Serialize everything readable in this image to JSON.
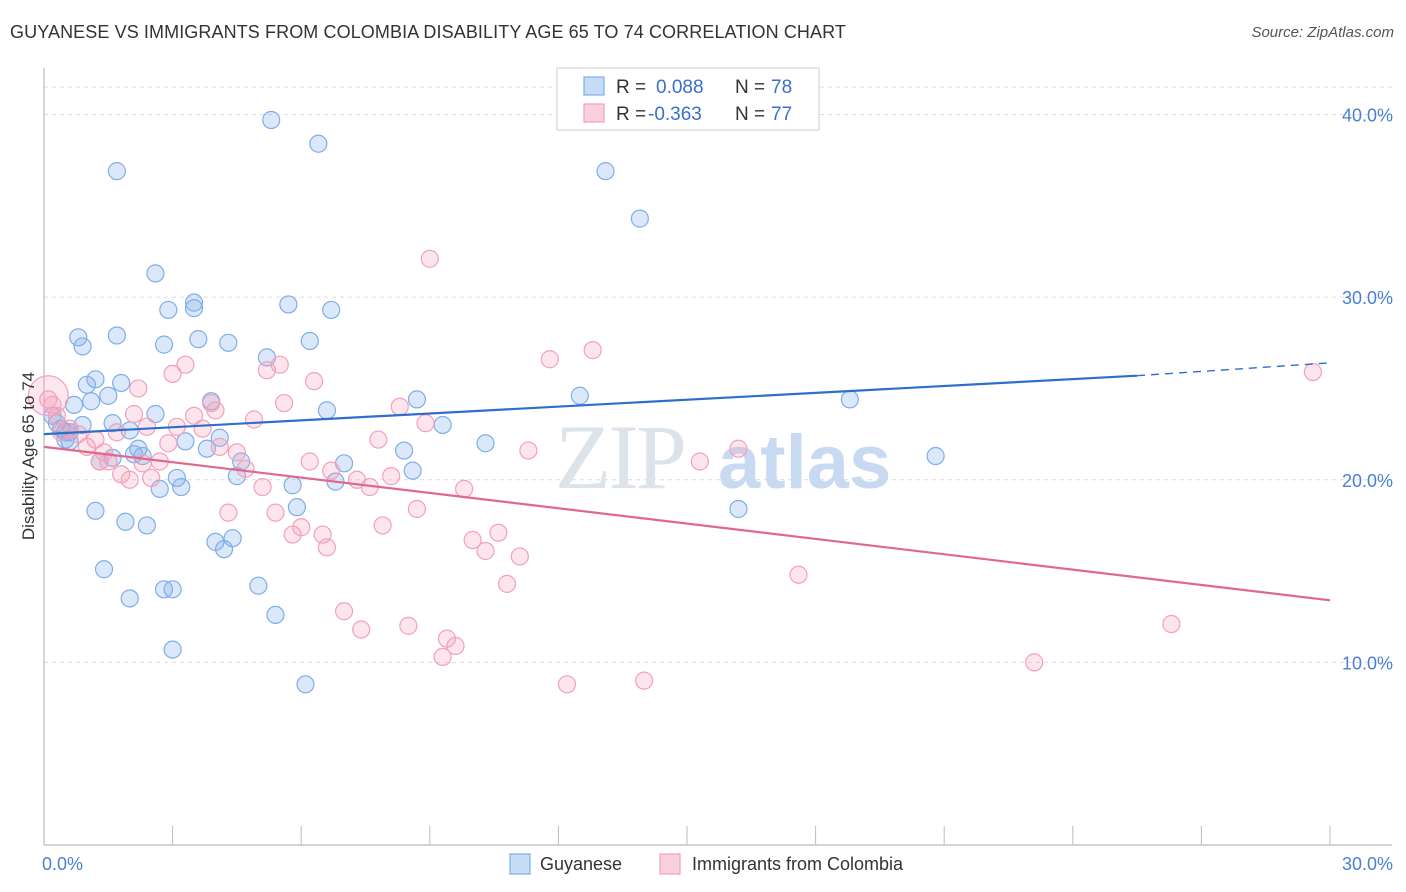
{
  "header": {
    "title": "GUYANESE VS IMMIGRANTS FROM COLOMBIA DISABILITY AGE 65 TO 74 CORRELATION CHART",
    "source": "Source: ZipAtlas.com"
  },
  "legend": {
    "r_label": "R =",
    "n_label": "N =",
    "rows": [
      {
        "r": "0.088",
        "n": "78",
        "color": "#7faee8"
      },
      {
        "r": "-0.363",
        "n": "77",
        "color": "#f4a0bb"
      }
    ]
  },
  "watermark": {
    "zip": "ZIP",
    "atlas": "atlas"
  },
  "chart_data": {
    "type": "scatter",
    "ylabel": "Disability Age 65 to 74",
    "xlim": [
      0,
      30
    ],
    "ylim": [
      0,
      42
    ],
    "y_ticks": [
      10,
      20,
      30,
      40
    ],
    "y_tick_labels": [
      "10.0%",
      "20.0%",
      "30.0%",
      "40.0%"
    ],
    "x_tick_labels": [
      "0.0%",
      "30.0%"
    ],
    "grid": true,
    "series": [
      {
        "name": "Guyanese",
        "color": "#7faee8",
        "trend": {
          "x0": 0,
          "y0": 22.5,
          "x1": 25.5,
          "y1": 25.7,
          "dash_to_x": 30,
          "dash_to_y": 26.4
        },
        "points": [
          [
            0.2,
            23.5
          ],
          [
            0.4,
            22.8
          ],
          [
            0.5,
            22.2
          ],
          [
            0.6,
            22.6
          ],
          [
            0.3,
            23.1
          ],
          [
            0.7,
            24.1
          ],
          [
            0.8,
            27.8
          ],
          [
            0.9,
            27.3
          ],
          [
            1.0,
            25.2
          ],
          [
            1.1,
            24.3
          ],
          [
            1.2,
            25.5
          ],
          [
            1.3,
            21.0
          ],
          [
            1.5,
            24.6
          ],
          [
            1.6,
            23.1
          ],
          [
            1.7,
            27.9
          ],
          [
            1.8,
            25.3
          ],
          [
            1.9,
            17.7
          ],
          [
            2.0,
            22.7
          ],
          [
            2.1,
            21.4
          ],
          [
            2.2,
            21.7
          ],
          [
            2.3,
            21.3
          ],
          [
            2.4,
            17.5
          ],
          [
            2.6,
            23.6
          ],
          [
            2.7,
            19.5
          ],
          [
            2.8,
            27.4
          ],
          [
            2.9,
            29.3
          ],
          [
            3.0,
            14.0
          ],
          [
            3.1,
            20.1
          ],
          [
            3.2,
            19.6
          ],
          [
            3.3,
            22.1
          ],
          [
            3.5,
            29.4
          ],
          [
            3.6,
            27.7
          ],
          [
            3.8,
            21.7
          ],
          [
            3.9,
            24.3
          ],
          [
            4.0,
            16.6
          ],
          [
            4.1,
            22.3
          ],
          [
            4.2,
            16.2
          ],
          [
            4.3,
            27.5
          ],
          [
            4.4,
            16.8
          ],
          [
            4.5,
            20.2
          ],
          [
            4.6,
            21.0
          ],
          [
            5.0,
            14.2
          ],
          [
            5.2,
            26.7
          ],
          [
            5.4,
            12.6
          ],
          [
            5.7,
            29.6
          ],
          [
            5.8,
            19.7
          ],
          [
            5.9,
            18.5
          ],
          [
            6.1,
            8.8
          ],
          [
            6.2,
            27.6
          ],
          [
            6.4,
            38.4
          ],
          [
            6.6,
            23.8
          ],
          [
            6.7,
            29.3
          ],
          [
            6.8,
            19.9
          ],
          [
            7.0,
            20.9
          ],
          [
            3.0,
            10.7
          ],
          [
            2.8,
            14.0
          ],
          [
            1.4,
            15.1
          ],
          [
            2.0,
            13.5
          ],
          [
            1.2,
            18.3
          ],
          [
            0.9,
            23.0
          ],
          [
            1.7,
            36.9
          ],
          [
            2.6,
            31.3
          ],
          [
            3.5,
            29.7
          ],
          [
            5.3,
            39.7
          ],
          [
            8.4,
            21.6
          ],
          [
            8.6,
            20.5
          ],
          [
            8.7,
            24.4
          ],
          [
            9.3,
            23.0
          ],
          [
            10.3,
            22.0
          ],
          [
            12.5,
            24.6
          ],
          [
            13.1,
            36.9
          ],
          [
            13.9,
            34.3
          ],
          [
            16.2,
            18.4
          ],
          [
            18.8,
            24.4
          ],
          [
            20.8,
            21.3
          ],
          [
            0.5,
            22.6
          ],
          [
            0.6,
            22.1
          ],
          [
            1.6,
            21.2
          ]
        ]
      },
      {
        "name": "Immigrants from Colombia",
        "color": "#f4a0bb",
        "trend": {
          "x0": 0,
          "y0": 21.8,
          "x1": 30,
          "y1": 13.4
        },
        "points": [
          [
            0.1,
            24.4
          ],
          [
            0.2,
            24.1
          ],
          [
            0.4,
            22.6
          ],
          [
            0.6,
            22.8
          ],
          [
            0.8,
            22.5
          ],
          [
            1.0,
            21.8
          ],
          [
            1.2,
            22.2
          ],
          [
            1.4,
            21.5
          ],
          [
            1.5,
            21.0
          ],
          [
            1.7,
            22.6
          ],
          [
            1.8,
            20.3
          ],
          [
            2.0,
            20.0
          ],
          [
            2.1,
            23.6
          ],
          [
            2.3,
            20.9
          ],
          [
            2.4,
            22.9
          ],
          [
            2.5,
            20.1
          ],
          [
            2.7,
            21.0
          ],
          [
            2.9,
            22.0
          ],
          [
            3.1,
            22.9
          ],
          [
            3.3,
            26.3
          ],
          [
            3.5,
            23.5
          ],
          [
            3.7,
            22.8
          ],
          [
            3.9,
            24.2
          ],
          [
            4.1,
            21.8
          ],
          [
            4.3,
            18.2
          ],
          [
            4.5,
            21.5
          ],
          [
            4.7,
            20.6
          ],
          [
            4.9,
            23.3
          ],
          [
            5.1,
            19.6
          ],
          [
            5.2,
            26.0
          ],
          [
            5.4,
            18.2
          ],
          [
            5.6,
            24.2
          ],
          [
            5.8,
            17.0
          ],
          [
            6.0,
            17.4
          ],
          [
            6.2,
            21.0
          ],
          [
            6.3,
            25.4
          ],
          [
            6.5,
            17.0
          ],
          [
            6.6,
            16.3
          ],
          [
            6.7,
            20.5
          ],
          [
            7.0,
            12.8
          ],
          [
            7.3,
            20.0
          ],
          [
            7.4,
            11.8
          ],
          [
            7.6,
            19.6
          ],
          [
            7.8,
            22.2
          ],
          [
            7.9,
            17.5
          ],
          [
            8.1,
            20.2
          ],
          [
            8.3,
            24.0
          ],
          [
            8.5,
            12.0
          ],
          [
            8.7,
            18.4
          ],
          [
            8.9,
            23.1
          ],
          [
            9.0,
            32.1
          ],
          [
            9.3,
            10.3
          ],
          [
            9.4,
            11.3
          ],
          [
            9.8,
            19.5
          ],
          [
            9.6,
            10.9
          ],
          [
            10.0,
            16.7
          ],
          [
            10.3,
            16.1
          ],
          [
            10.6,
            17.1
          ],
          [
            10.8,
            14.3
          ],
          [
            11.1,
            15.8
          ],
          [
            11.3,
            21.6
          ],
          [
            11.8,
            26.6
          ],
          [
            12.2,
            8.8
          ],
          [
            12.8,
            27.1
          ],
          [
            14.0,
            9.0
          ],
          [
            15.3,
            21.0
          ],
          [
            16.2,
            21.7
          ],
          [
            17.6,
            14.8
          ],
          [
            23.1,
            10.0
          ],
          [
            26.3,
            12.1
          ],
          [
            29.6,
            25.9
          ],
          [
            1.3,
            21.0
          ],
          [
            2.2,
            25.0
          ],
          [
            3.0,
            25.8
          ],
          [
            4.0,
            23.8
          ],
          [
            5.5,
            26.3
          ],
          [
            0.3,
            23.5
          ]
        ]
      }
    ],
    "bottom_legend": [
      "Guyanese",
      "Immigrants from Colombia"
    ]
  }
}
